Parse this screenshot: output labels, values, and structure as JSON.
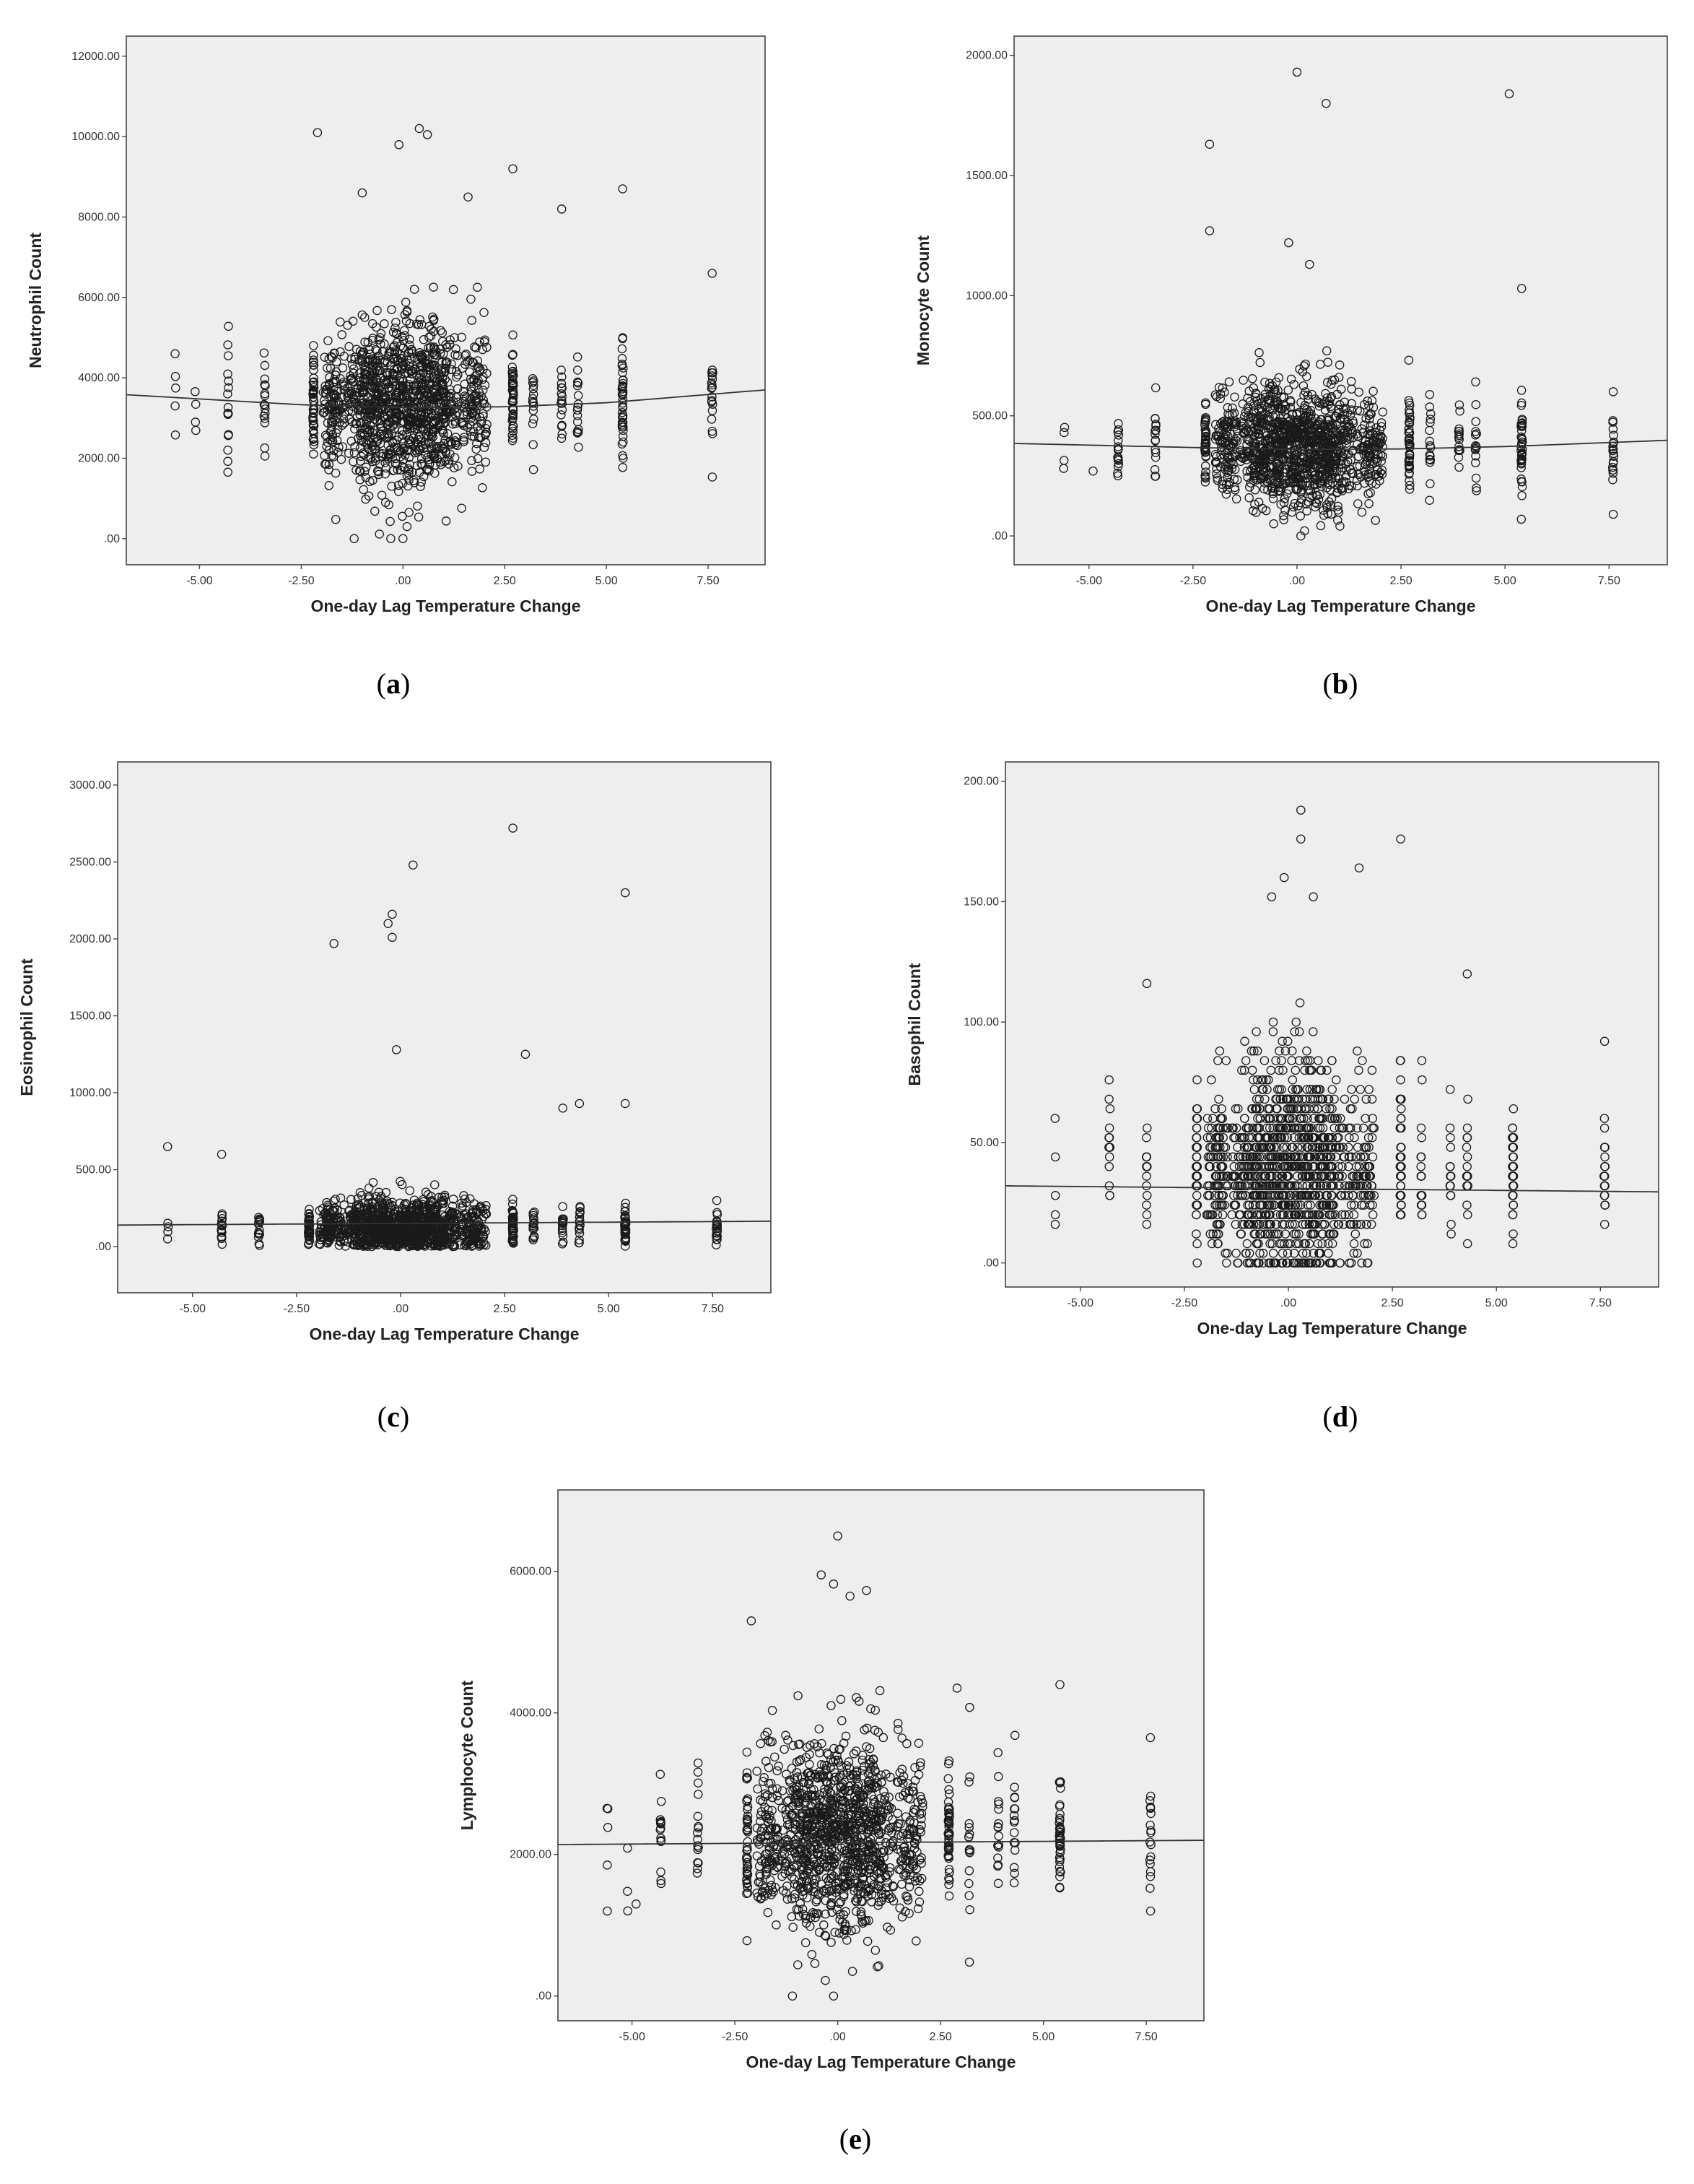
{
  "figure": {
    "panels": [
      {
        "id": "a",
        "caption": "a"
      },
      {
        "id": "b",
        "caption": "b"
      },
      {
        "id": "c",
        "caption": "c"
      },
      {
        "id": "d",
        "caption": "d"
      },
      {
        "id": "e",
        "caption": "e"
      }
    ]
  },
  "colors": {
    "plot_background": "#eeeeee",
    "marker_stroke": "#1a1a1a",
    "fit_line": "#333333",
    "frame": "#444444"
  },
  "chart_data": [
    {
      "type": "scatter",
      "title": "",
      "xlabel": "One-day Lag Temperature Change",
      "ylabel": "Neutrophil Count",
      "xlim": [
        -6.8,
        8.9
      ],
      "ylim": [
        -650,
        12500
      ],
      "xticks": [
        -5,
        -2.5,
        0,
        2.5,
        5,
        7.5
      ],
      "xtick_labels": [
        "-5.00",
        "-2.50",
        ".00",
        "2.50",
        "5.00",
        "7.50"
      ],
      "yticks": [
        0,
        2000,
        4000,
        6000,
        8000,
        10000,
        12000
      ],
      "ytick_labels": [
        ".00",
        "2000.00",
        "4000.00",
        "6000.00",
        "8000.00",
        "10000.00",
        "12000.00"
      ],
      "grid": false,
      "legend": "none",
      "marker": "open circle",
      "fit_line": {
        "type": "quadratic",
        "x": [
          -6.8,
          -2.5,
          0,
          2.5,
          5,
          8.9
        ],
        "y": [
          3580,
          3330,
          3260,
          3280,
          3380,
          3700
        ]
      },
      "distribution": {
        "center": 3400,
        "spread": 1000,
        "min": 0,
        "max": 10200
      },
      "column_x": [
        -5.6,
        -5.1,
        -4.3,
        -3.4,
        -2.2,
        -1.8,
        -1.6,
        -1.2,
        -0.9,
        -0.6,
        -0.3,
        0.0,
        0.3,
        0.6,
        0.9,
        1.2,
        1.6,
        1.9,
        2.7,
        3.2,
        3.9,
        4.3,
        5.4,
        7.6
      ],
      "outliers": [
        [
          -5.6,
          4600
        ],
        [
          -5.6,
          3300
        ],
        [
          -5.1,
          2900
        ],
        [
          -2.1,
          10100
        ],
        [
          -1.0,
          8600
        ],
        [
          -0.1,
          9800
        ],
        [
          0.4,
          10200
        ],
        [
          0.6,
          10050
        ],
        [
          1.6,
          8500
        ],
        [
          2.7,
          9200
        ],
        [
          3.9,
          8200
        ],
        [
          5.4,
          8700
        ],
        [
          7.6,
          6600
        ],
        [
          -1.2,
          0
        ],
        [
          -0.3,
          0
        ],
        [
          0.0,
          0
        ],
        [
          0.1,
          300
        ]
      ]
    },
    {
      "type": "scatter",
      "title": "",
      "xlabel": "One-day Lag Temperature Change",
      "ylabel": "Monocyte Count",
      "xlim": [
        -6.8,
        8.9
      ],
      "ylim": [
        -120,
        2080
      ],
      "xticks": [
        -5,
        -2.5,
        0,
        2.5,
        5,
        7.5
      ],
      "xtick_labels": [
        "-5.00",
        "-2.50",
        ".00",
        "2.50",
        "5.00",
        "7.50"
      ],
      "yticks": [
        0,
        500,
        1000,
        1500,
        2000
      ],
      "ytick_labels": [
        ".00",
        "500.00",
        "1000.00",
        "1500.00",
        "2000.00"
      ],
      "grid": false,
      "legend": "none",
      "marker": "open circle",
      "fit_line": {
        "type": "quadratic",
        "x": [
          -6.8,
          -2.5,
          0,
          2.5,
          5,
          8.9
        ],
        "y": [
          385,
          368,
          360,
          362,
          372,
          398
        ]
      },
      "distribution": {
        "center": 380,
        "spread": 130,
        "min": 0,
        "max": 1200
      },
      "column_x": [
        -5.6,
        -4.3,
        -3.4,
        -2.2,
        -1.8,
        -1.6,
        -1.2,
        -0.9,
        -0.6,
        -0.3,
        0.0,
        0.3,
        0.6,
        0.9,
        1.2,
        1.6,
        1.9,
        2.7,
        3.2,
        3.9,
        4.3,
        5.4,
        7.6
      ],
      "outliers": [
        [
          -2.1,
          1630
        ],
        [
          -2.1,
          1270
        ],
        [
          0.0,
          1930
        ],
        [
          0.7,
          1800
        ],
        [
          5.1,
          1840
        ],
        [
          5.4,
          1030
        ],
        [
          -0.2,
          1220
        ],
        [
          0.3,
          1130
        ],
        [
          -5.6,
          430
        ],
        [
          -4.9,
          270
        ],
        [
          7.6,
          600
        ],
        [
          7.6,
          90
        ]
      ]
    },
    {
      "type": "scatter",
      "title": "",
      "xlabel": "One-day Lag Temperature Change",
      "ylabel": "Eosinophil Count",
      "xlim": [
        -6.8,
        8.9
      ],
      "ylim": [
        -300,
        3150
      ],
      "xticks": [
        -5,
        -2.5,
        0,
        2.5,
        5,
        7.5
      ],
      "xtick_labels": [
        "-5.00",
        "-2.50",
        ".00",
        "2.50",
        "5.00",
        "7.50"
      ],
      "yticks": [
        0,
        500,
        1000,
        1500,
        2000,
        2500,
        3000
      ],
      "ytick_labels": [
        ".00",
        "500.00",
        "1000.00",
        "1500.00",
        "2000.00",
        "2500.00",
        "3000.00"
      ],
      "grid": false,
      "legend": "none",
      "marker": "open circle",
      "fit_line": {
        "type": "linear",
        "x": [
          -6.8,
          8.9
        ],
        "y": [
          140,
          165
        ]
      },
      "distribution": {
        "center": 140,
        "spread": 110,
        "min": 0,
        "max": 1300
      },
      "column_x": [
        -5.6,
        -4.3,
        -3.4,
        -2.2,
        -1.8,
        -1.6,
        -1.2,
        -0.9,
        -0.6,
        -0.3,
        0.0,
        0.3,
        0.6,
        0.9,
        1.2,
        1.6,
        1.9,
        2.7,
        3.2,
        3.9,
        4.3,
        5.4,
        7.6
      ],
      "outliers": [
        [
          2.7,
          2720
        ],
        [
          0.3,
          2480
        ],
        [
          5.4,
          2300
        ],
        [
          -0.2,
          2160
        ],
        [
          -0.2,
          2010
        ],
        [
          -0.3,
          2100
        ],
        [
          -1.6,
          1970
        ],
        [
          -0.1,
          1280
        ],
        [
          3.0,
          1250
        ],
        [
          4.3,
          930
        ],
        [
          5.4,
          930
        ],
        [
          3.9,
          900
        ],
        [
          -5.6,
          650
        ],
        [
          -4.3,
          600
        ],
        [
          -5.6,
          50
        ],
        [
          7.6,
          300
        ]
      ]
    },
    {
      "type": "scatter",
      "title": "",
      "xlabel": "One-day Lag Temperature Change",
      "ylabel": "Basophil Count",
      "xlim": [
        -6.8,
        8.9
      ],
      "ylim": [
        -10,
        208
      ],
      "xticks": [
        -5,
        -2.5,
        0,
        2.5,
        5,
        7.5
      ],
      "xtick_labels": [
        "-5.00",
        "-2.50",
        ".00",
        "2.50",
        "5.00",
        "7.50"
      ],
      "yticks": [
        0,
        50,
        100,
        150,
        200
      ],
      "ytick_labels": [
        ".00",
        "50.00",
        "100.00",
        "150.00",
        "200.00"
      ],
      "grid": false,
      "legend": "none",
      "marker": "open circle",
      "fit_line": {
        "type": "linear",
        "x": [
          -6.8,
          8.9
        ],
        "y": [
          32,
          29.5
        ]
      },
      "distribution": {
        "center": 38,
        "spread": 22,
        "min": 0,
        "max": 190,
        "quantized_step": 4
      },
      "column_x": [
        -5.6,
        -4.3,
        -3.4,
        -2.2,
        -1.8,
        -1.6,
        -1.2,
        -0.9,
        -0.6,
        -0.3,
        0.0,
        0.3,
        0.6,
        0.9,
        1.2,
        1.6,
        1.9,
        2.7,
        3.2,
        3.9,
        4.3,
        5.4,
        7.6
      ],
      "outliers": [
        [
          0.3,
          188
        ],
        [
          0.3,
          177
        ],
        [
          2.7,
          177
        ],
        [
          1.7,
          163
        ],
        [
          -0.1,
          160
        ],
        [
          -0.4,
          150
        ],
        [
          0.6,
          150
        ],
        [
          4.3,
          119
        ],
        [
          -3.4,
          117
        ],
        [
          7.6,
          91
        ],
        [
          -5.6,
          45
        ],
        [
          -5.6,
          27
        ]
      ]
    },
    {
      "type": "scatter",
      "title": "",
      "xlabel": "One-day Lag Temperature Change",
      "ylabel": "Lymphocyte Count",
      "xlim": [
        -6.8,
        8.9
      ],
      "ylim": [
        -350,
        7150
      ],
      "xticks": [
        -5,
        -2.5,
        0,
        2.5,
        5,
        7.5
      ],
      "xtick_labels": [
        "-5.00",
        "-2.50",
        ".00",
        "2.50",
        "5.00",
        "7.50"
      ],
      "yticks": [
        0,
        2000,
        4000,
        6000
      ],
      "ytick_labels": [
        ".00",
        "2000.00",
        "4000.00",
        "6000.00"
      ],
      "grid": false,
      "legend": "none",
      "marker": "open circle",
      "fit_line": {
        "type": "linear",
        "x": [
          -6.8,
          8.9
        ],
        "y": [
          2140,
          2200
        ]
      },
      "distribution": {
        "center": 2250,
        "spread": 700,
        "min": 0,
        "max": 6500
      },
      "column_x": [
        -5.6,
        -5.1,
        -4.3,
        -3.4,
        -2.2,
        -1.8,
        -1.6,
        -1.2,
        -0.9,
        -0.6,
        -0.3,
        0.0,
        0.3,
        0.6,
        0.9,
        1.2,
        1.6,
        1.9,
        2.7,
        3.2,
        3.9,
        4.3,
        5.4,
        7.6
      ],
      "outliers": [
        [
          0.0,
          6500
        ],
        [
          -0.4,
          5950
        ],
        [
          -0.1,
          5820
        ],
        [
          0.3,
          5650
        ],
        [
          0.7,
          5730
        ],
        [
          -2.1,
          5300
        ],
        [
          5.4,
          4400
        ],
        [
          2.9,
          4350
        ],
        [
          7.6,
          3650
        ],
        [
          -5.6,
          1850
        ],
        [
          -5.6,
          1200
        ],
        [
          -4.9,
          1300
        ],
        [
          3.2,
          480
        ],
        [
          -1.1,
          0
        ],
        [
          -0.1,
          0
        ],
        [
          -0.3,
          220
        ]
      ]
    }
  ]
}
